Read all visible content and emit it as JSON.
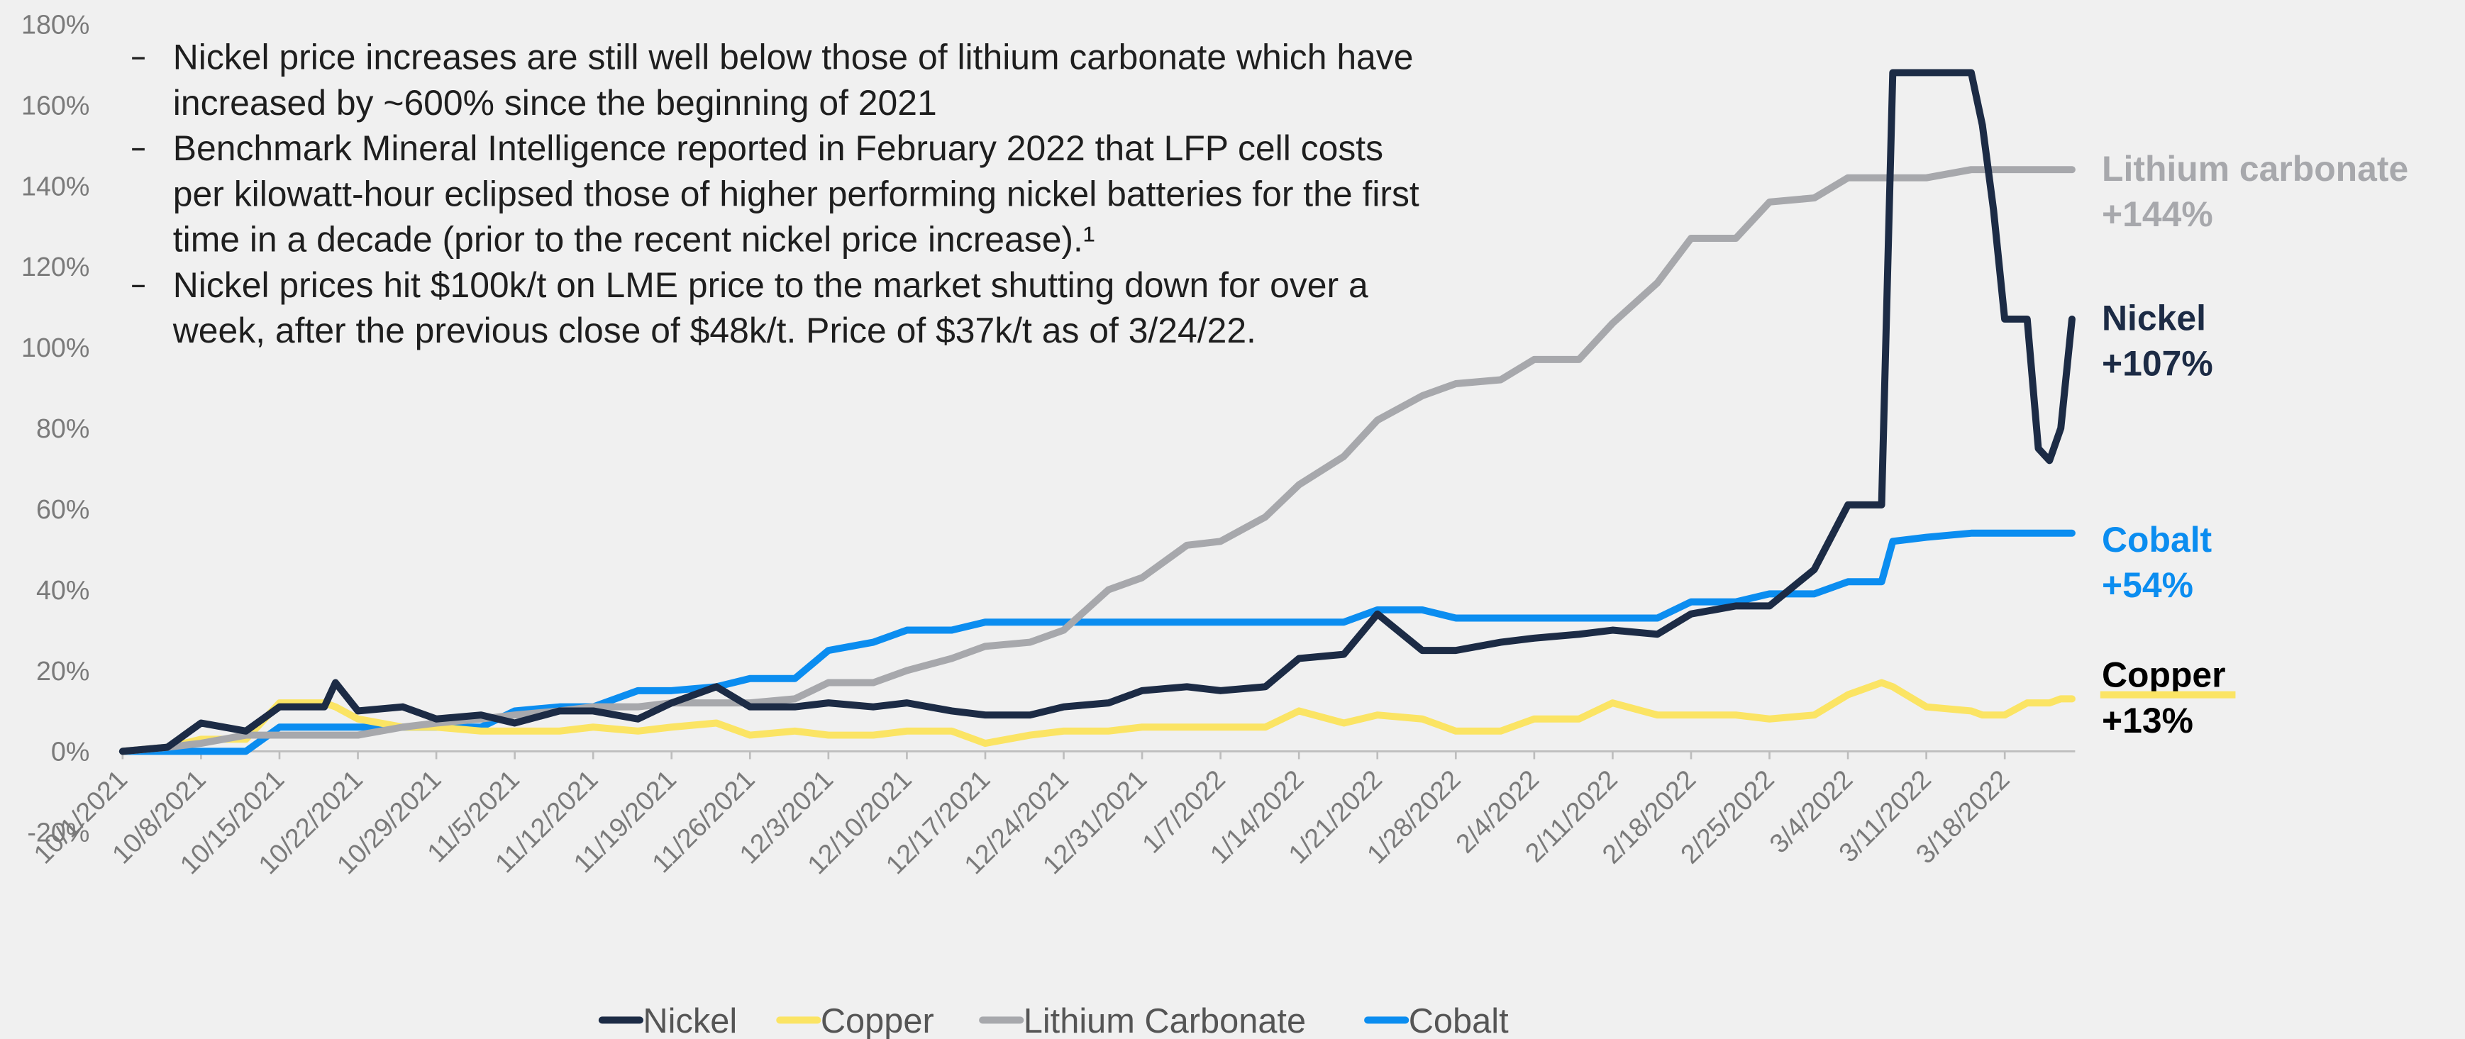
{
  "chart_data": {
    "type": "line",
    "annotations": [
      {
        "lines": [
          "Nickel price increases are still well below those of lithium carbonate which have",
          "increased by ~600% since the beginning of 2021"
        ]
      },
      {
        "lines": [
          "Benchmark Mineral Intelligence reported in February 2022 that LFP cell costs",
          "per kilowatt-hour eclipsed those of higher performing nickel batteries for the first",
          "time in a decade (prior to the recent nickel price increase).¹"
        ]
      },
      {
        "lines": [
          "Nickel prices hit $100k/t on LME price to the market shutting down for over a",
          "week, after the previous close of $48k/t. Price of $37k/t as of 3/24/22."
        ]
      }
    ],
    "x": [
      "10/1/2021",
      "10/5/2021",
      "10/8/2021",
      "10/12/2021",
      "10/15/2021",
      "10/19/2021",
      "10/20/2021",
      "10/22/2021",
      "10/26/2021",
      "10/29/2021",
      "11/2/2021",
      "11/5/2021",
      "11/9/2021",
      "11/12/2021",
      "11/16/2021",
      "11/19/2021",
      "11/23/2021",
      "11/26/2021",
      "11/30/2021",
      "12/3/2021",
      "12/7/2021",
      "12/10/2021",
      "12/14/2021",
      "12/17/2021",
      "12/21/2021",
      "12/24/2021",
      "12/28/2021",
      "12/31/2021",
      "1/4/2022",
      "1/7/2022",
      "1/11/2022",
      "1/14/2022",
      "1/18/2022",
      "1/21/2022",
      "1/25/2022",
      "1/28/2022",
      "2/1/2022",
      "2/4/2022",
      "2/8/2022",
      "2/11/2022",
      "2/15/2022",
      "2/18/2022",
      "2/22/2022",
      "2/25/2022",
      "3/1/2022",
      "3/4/2022",
      "3/7/2022",
      "3/8/2022",
      "3/11/2022",
      "3/15/2022",
      "3/16/2022",
      "3/17/2022",
      "3/18/2022",
      "3/20/2022",
      "3/21/2022",
      "3/22/2022",
      "3/23/2022",
      "3/24/2022"
    ],
    "xlim": [
      "10/1/2021",
      "3/24/2022"
    ],
    "xticks": [
      "10/1/2021",
      "10/8/2021",
      "10/15/2021",
      "10/22/2021",
      "10/29/2021",
      "11/5/2021",
      "11/12/2021",
      "11/19/2021",
      "11/26/2021",
      "12/3/2021",
      "12/10/2021",
      "12/17/2021",
      "12/24/2021",
      "12/31/2021",
      "1/7/2022",
      "1/14/2022",
      "1/21/2022",
      "1/28/2022",
      "2/4/2022",
      "2/11/2022",
      "2/18/2022",
      "2/25/2022",
      "3/4/2022",
      "3/11/2022",
      "3/18/2022"
    ],
    "ylim": [
      -20,
      180
    ],
    "yticks": [
      {
        "value": -20,
        "label": "-20%"
      },
      {
        "value": 0,
        "label": "0%"
      },
      {
        "value": 20,
        "label": "20%"
      },
      {
        "value": 40,
        "label": "40%"
      },
      {
        "value": 60,
        "label": "60%"
      },
      {
        "value": 80,
        "label": "80%"
      },
      {
        "value": 100,
        "label": "100%"
      },
      {
        "value": 120,
        "label": "120%"
      },
      {
        "value": 140,
        "label": "140%"
      },
      {
        "value": 160,
        "label": "160%"
      },
      {
        "value": 180,
        "label": "180%"
      }
    ],
    "legend": "bottom",
    "series": [
      {
        "name": "Nickel",
        "color": "#1c2b45",
        "end_label_name": "Nickel",
        "end_label_value": "+107%",
        "values": [
          0,
          1,
          7,
          5,
          11,
          11,
          17,
          10,
          11,
          8,
          9,
          7,
          10,
          10,
          8,
          12,
          16,
          11,
          11,
          12,
          11,
          12,
          10,
          9,
          9,
          11,
          12,
          15,
          16,
          15,
          16,
          23,
          24,
          34,
          25,
          25,
          27,
          28,
          29,
          30,
          29,
          34,
          36,
          36,
          45,
          61,
          61,
          168,
          168,
          168,
          155,
          134,
          107,
          107,
          75,
          72,
          80,
          107
        ]
      },
      {
        "name": "Copper",
        "color": "#fbe464",
        "end_label_name": "Copper",
        "end_label_value": "+13%",
        "values": [
          0,
          1,
          3,
          3,
          12,
          12,
          11,
          8,
          6,
          6,
          5,
          5,
          5,
          6,
          5,
          6,
          7,
          4,
          5,
          4,
          4,
          5,
          5,
          2,
          4,
          5,
          5,
          6,
          6,
          6,
          6,
          10,
          7,
          9,
          8,
          5,
          5,
          8,
          8,
          12,
          9,
          9,
          9,
          8,
          9,
          14,
          17,
          16,
          11,
          10,
          9,
          9,
          9,
          12,
          12,
          12,
          13,
          13
        ]
      },
      {
        "name": "Lithium Carbonate",
        "color": "#a7a8ac",
        "end_label_name": "Lithium carbonate",
        "end_label_value": "+144%",
        "values": [
          0,
          1,
          2,
          4,
          4,
          4,
          4,
          4,
          6,
          7,
          8,
          9,
          10,
          11,
          11,
          12,
          12,
          12,
          13,
          17,
          17,
          20,
          23,
          26,
          27,
          30,
          40,
          43,
          51,
          52,
          58,
          66,
          73,
          82,
          88,
          91,
          92,
          97,
          97,
          106,
          116,
          127,
          127,
          136,
          137,
          142,
          142,
          142,
          142,
          144,
          144,
          144,
          144,
          144,
          144,
          144,
          144,
          144
        ]
      },
      {
        "name": "Cobalt",
        "color": "#0b8df0",
        "end_label_name": "Cobalt",
        "end_label_value": "+54%",
        "values": [
          0,
          0,
          0,
          0,
          6,
          6,
          6,
          6,
          6,
          6,
          6,
          10,
          11,
          11,
          15,
          15,
          16,
          18,
          18,
          25,
          27,
          30,
          30,
          32,
          32,
          32,
          32,
          32,
          32,
          32,
          32,
          32,
          32,
          35,
          35,
          33,
          33,
          33,
          33,
          33,
          33,
          37,
          37,
          39,
          39,
          42,
          42,
          52,
          53,
          54,
          54,
          54,
          54,
          54,
          54,
          54,
          54,
          54
        ]
      }
    ]
  }
}
